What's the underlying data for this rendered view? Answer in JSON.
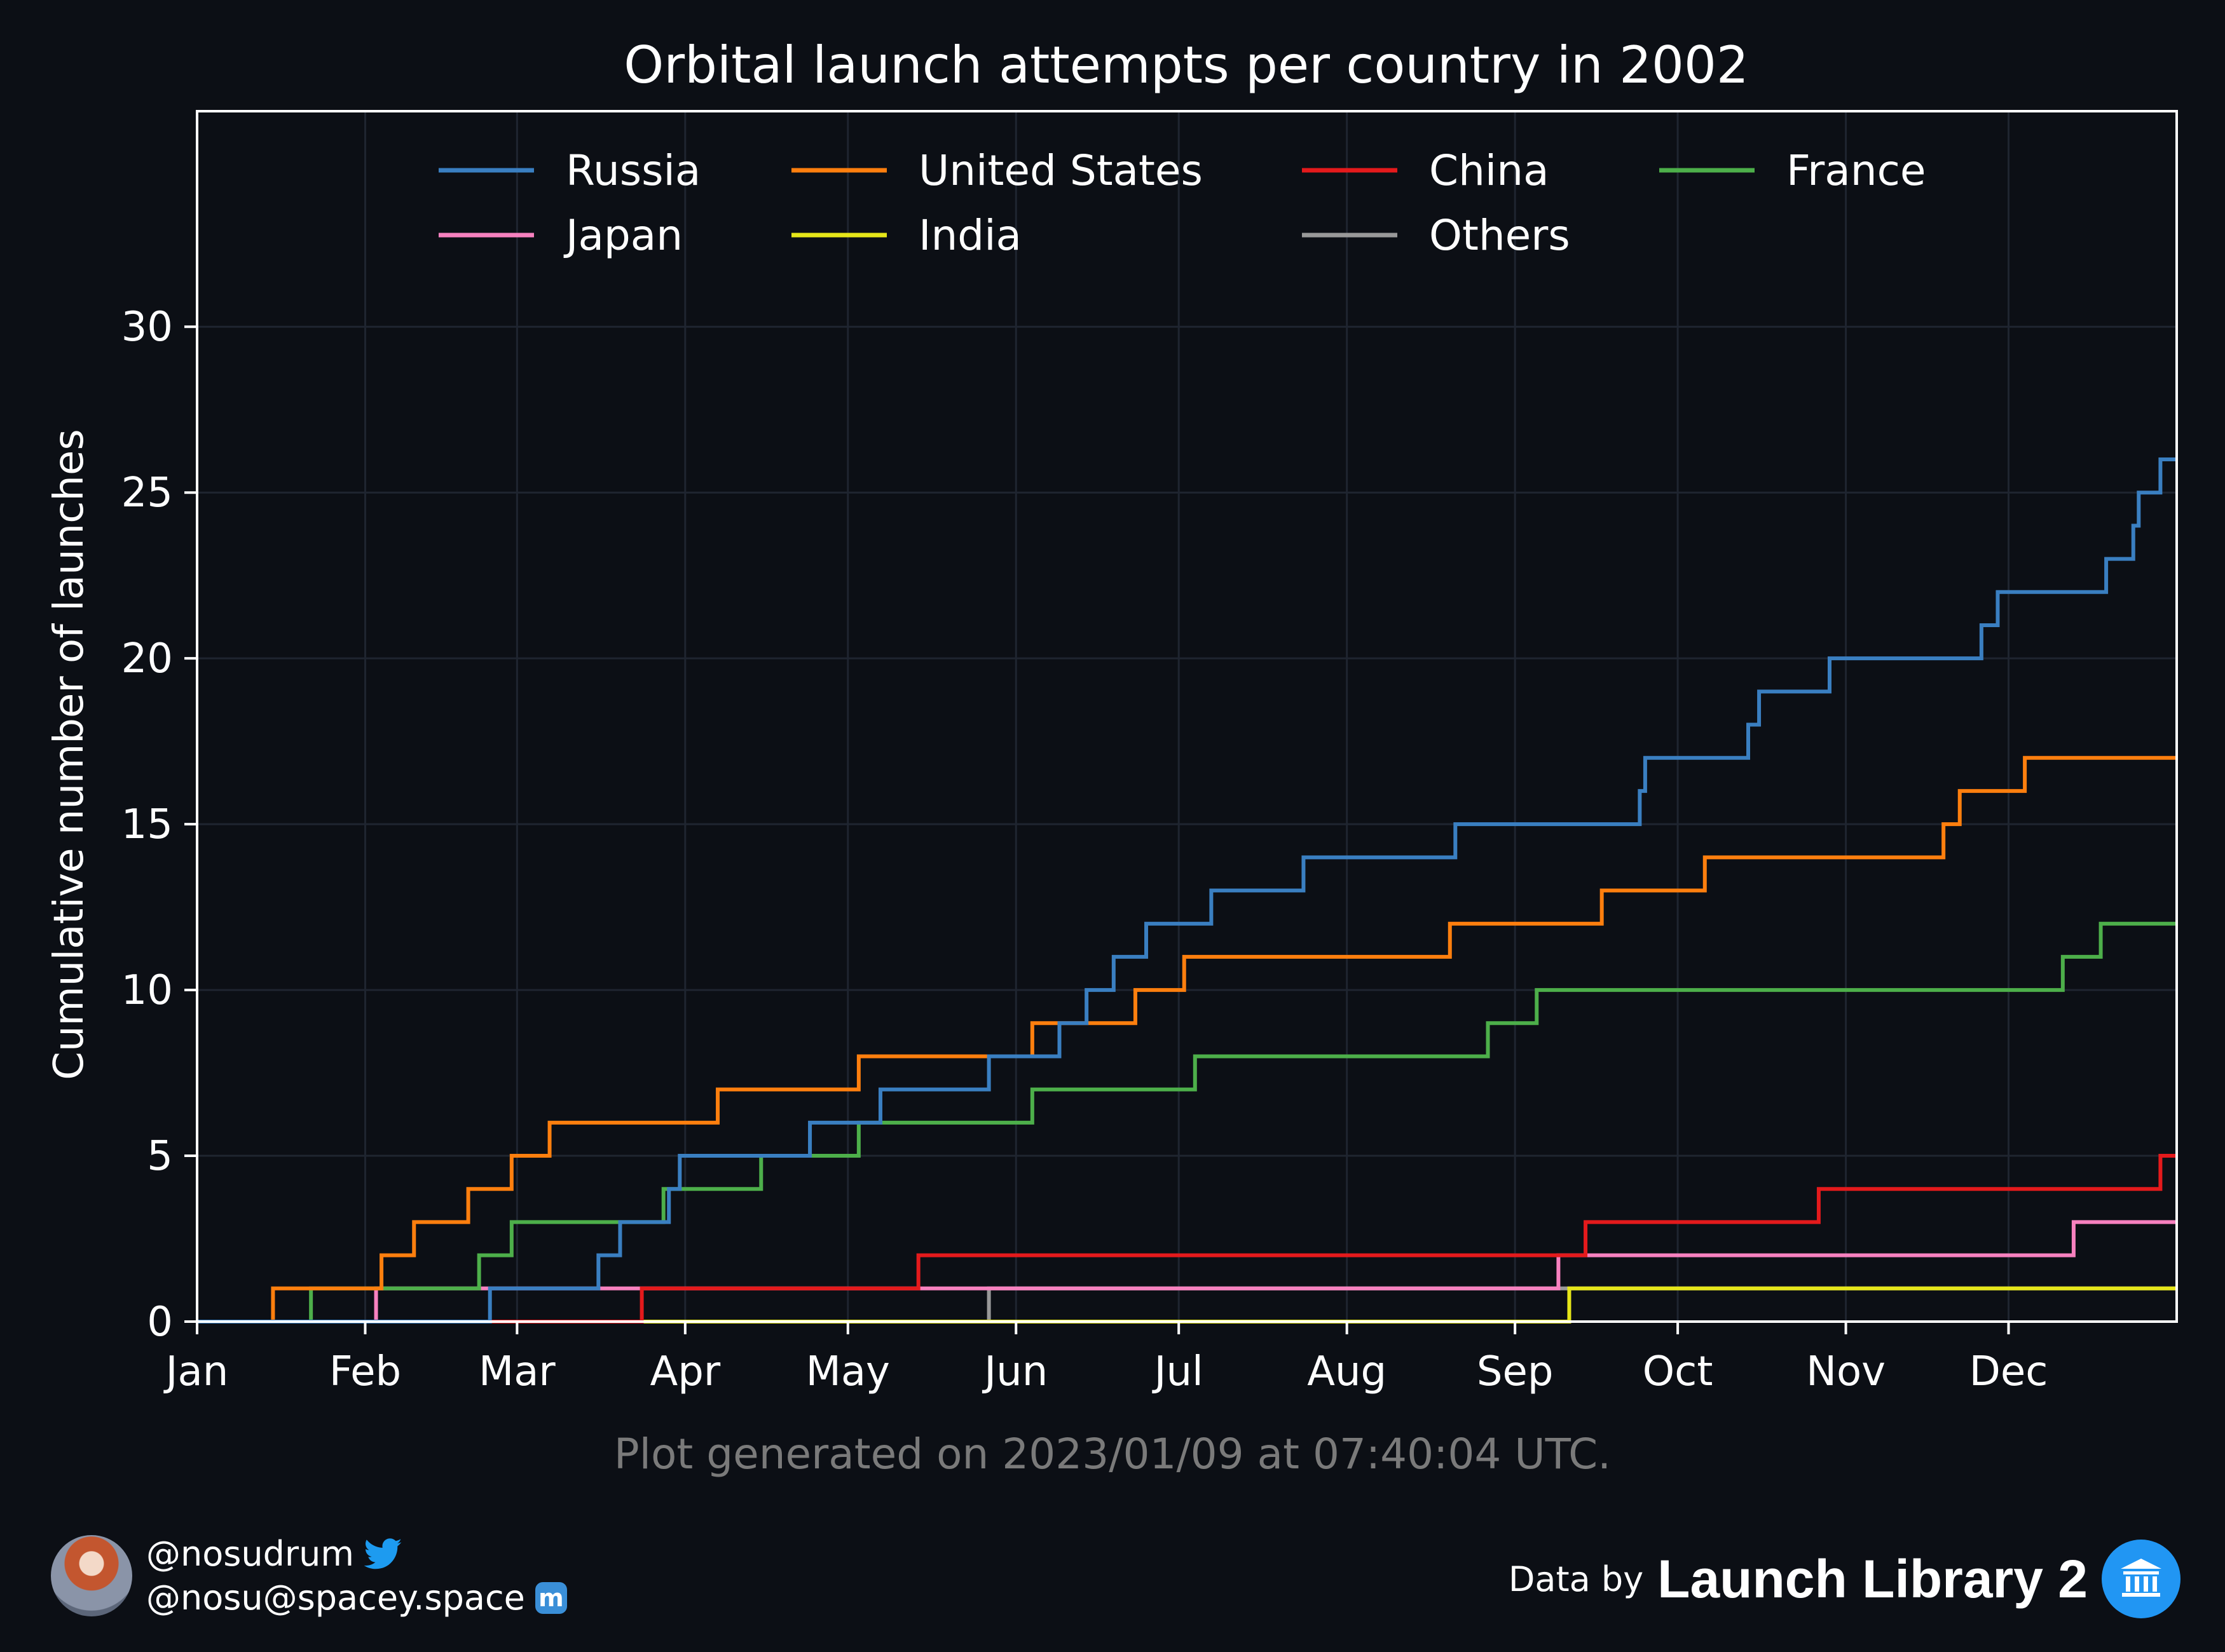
{
  "chart_data": {
    "type": "line",
    "step": true,
    "title": "Orbital launch attempts per country in 2002",
    "ylabel": "Cumulative number of launches",
    "xlabel": "",
    "x_unit": "day of year 2002",
    "xlim": [
      0,
      365
    ],
    "ylim": [
      0,
      36.5
    ],
    "x_ticks": [
      {
        "label": "Jan",
        "day": 0
      },
      {
        "label": "Feb",
        "day": 31
      },
      {
        "label": "Mar",
        "day": 59
      },
      {
        "label": "Apr",
        "day": 90
      },
      {
        "label": "May",
        "day": 120
      },
      {
        "label": "Jun",
        "day": 151
      },
      {
        "label": "Jul",
        "day": 181
      },
      {
        "label": "Aug",
        "day": 212
      },
      {
        "label": "Sep",
        "day": 243
      },
      {
        "label": "Oct",
        "day": 273
      },
      {
        "label": "Nov",
        "day": 304
      },
      {
        "label": "Dec",
        "day": 334
      }
    ],
    "y_ticks": [
      0,
      5,
      10,
      15,
      20,
      25,
      30
    ],
    "grid": true,
    "legend_position": "top",
    "series": [
      {
        "name": "Russia",
        "color": "#3a7fc1",
        "steps": [
          [
            54,
            1
          ],
          [
            74,
            2
          ],
          [
            78,
            3
          ],
          [
            87,
            4
          ],
          [
            89,
            5
          ],
          [
            113,
            6
          ],
          [
            126,
            7
          ],
          [
            146,
            8
          ],
          [
            159,
            9
          ],
          [
            164,
            10
          ],
          [
            169,
            11
          ],
          [
            175,
            12
          ],
          [
            187,
            13
          ],
          [
            204,
            14
          ],
          [
            232,
            15
          ],
          [
            266,
            16
          ],
          [
            267,
            17
          ],
          [
            286,
            18
          ],
          [
            288,
            19
          ],
          [
            301,
            20
          ],
          [
            329,
            21
          ],
          [
            332,
            22
          ],
          [
            352,
            23
          ],
          [
            357,
            24
          ],
          [
            358,
            25
          ],
          [
            362,
            26
          ]
        ]
      },
      {
        "name": "United States",
        "color": "#ff7f0e",
        "steps": [
          [
            14,
            1
          ],
          [
            34,
            2
          ],
          [
            40,
            3
          ],
          [
            50,
            4
          ],
          [
            58,
            5
          ],
          [
            65,
            6
          ],
          [
            96,
            7
          ],
          [
            122,
            8
          ],
          [
            154,
            9
          ],
          [
            173,
            10
          ],
          [
            182,
            11
          ],
          [
            231,
            12
          ],
          [
            259,
            13
          ],
          [
            278,
            14
          ],
          [
            322,
            15
          ],
          [
            325,
            16
          ],
          [
            337,
            17
          ]
        ]
      },
      {
        "name": "China",
        "color": "#e41a1c",
        "steps": [
          [
            82,
            1
          ],
          [
            133,
            2
          ],
          [
            256,
            3
          ],
          [
            299,
            4
          ],
          [
            362,
            5
          ]
        ]
      },
      {
        "name": "France",
        "color": "#4daf4a",
        "steps": [
          [
            21,
            1
          ],
          [
            52,
            2
          ],
          [
            58,
            3
          ],
          [
            86,
            4
          ],
          [
            104,
            5
          ],
          [
            122,
            6
          ],
          [
            154,
            7
          ],
          [
            184,
            8
          ],
          [
            238,
            9
          ],
          [
            247,
            10
          ],
          [
            344,
            11
          ],
          [
            351,
            12
          ]
        ]
      },
      {
        "name": "Japan",
        "color": "#f781bf",
        "steps": [
          [
            33,
            1
          ],
          [
            251,
            2
          ],
          [
            346,
            3
          ]
        ]
      },
      {
        "name": "India",
        "color": "#e6e619",
        "steps": [
          [
            253,
            1
          ]
        ]
      },
      {
        "name": "Others",
        "color": "#999999",
        "steps": [
          [
            146,
            1
          ]
        ]
      }
    ]
  },
  "footer": {
    "generated": "Plot generated on 2023/01/09 at 07:40:04 UTC.",
    "twitter_handle": "@nosudrum",
    "mastodon_handle": "@nosu@spacey.space",
    "data_by": "Data by",
    "source": "Launch Library 2"
  }
}
